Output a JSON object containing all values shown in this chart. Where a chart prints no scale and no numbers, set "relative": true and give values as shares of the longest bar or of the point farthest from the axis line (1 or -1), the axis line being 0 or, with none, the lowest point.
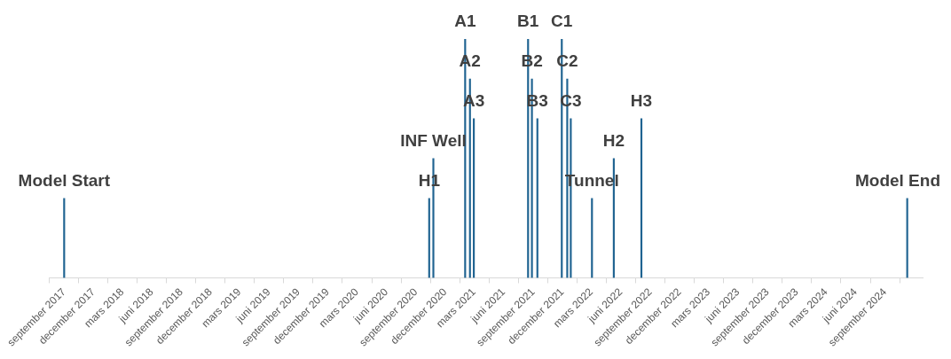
{
  "chart_data": {
    "type": "bar",
    "relative": true,
    "color": "#1f6391",
    "x": [
      "2017-09-01",
      "2020-10-12",
      "2020-10-25",
      "2021-02-01",
      "2021-02-16",
      "2021-02-28",
      "2021-08-16",
      "2021-08-28",
      "2021-09-14",
      "2021-11-29",
      "2021-12-16",
      "2021-12-27",
      "2022-03-03",
      "2022-05-10",
      "2022-08-04",
      "2024-11-09"
    ],
    "values": [
      0.333,
      0.333,
      0.5,
      1,
      0.833,
      0.667,
      1,
      0.833,
      0.667,
      1,
      0.833,
      0.667,
      0.333,
      0.5,
      0.667,
      0.333
    ],
    "xlim": [
      "2017-09-01",
      "2024-11-10"
    ],
    "xticks": [
      {
        "value": "2017-09-01",
        "label": "september 2017"
      },
      {
        "value": "2017-12-01",
        "label": "december 2017"
      },
      {
        "value": "2018-03-01",
        "label": "mars 2018"
      },
      {
        "value": "2018-06-01",
        "label": "juni 2018"
      },
      {
        "value": "2018-09-01",
        "label": "september 2018"
      },
      {
        "value": "2018-12-01",
        "label": "december 2018"
      },
      {
        "value": "2019-03-01",
        "label": "mars 2019"
      },
      {
        "value": "2019-06-01",
        "label": "juni 2019"
      },
      {
        "value": "2019-09-01",
        "label": "september 2019"
      },
      {
        "value": "2019-12-01",
        "label": "december 2019"
      },
      {
        "value": "2020-03-01",
        "label": "mars 2020"
      },
      {
        "value": "2020-06-01",
        "label": "juni 2020"
      },
      {
        "value": "2020-09-01",
        "label": "september 2020"
      },
      {
        "value": "2020-12-01",
        "label": "december 2020"
      },
      {
        "value": "2021-03-01",
        "label": "mars 2021"
      },
      {
        "value": "2021-06-01",
        "label": "juni 2021"
      },
      {
        "value": "2021-09-01",
        "label": "september 2021"
      },
      {
        "value": "2021-12-01",
        "label": "december 2021"
      },
      {
        "value": "2022-03-01",
        "label": "mars 2022"
      },
      {
        "value": "2022-06-01",
        "label": "juni 2022"
      },
      {
        "value": "2022-09-01",
        "label": "september 2022"
      },
      {
        "value": "2022-12-01",
        "label": "december 2022"
      },
      {
        "value": "2023-03-01",
        "label": "mars 2023"
      },
      {
        "value": "2023-06-01",
        "label": "juni 2023"
      },
      {
        "value": "2023-09-01",
        "label": "september 2023"
      },
      {
        "value": "2023-12-01",
        "label": "december 2023"
      },
      {
        "value": "2024-03-01",
        "label": "mars 2024"
      },
      {
        "value": "2024-06-01",
        "label": "juni 2024"
      },
      {
        "value": "2024-09-01",
        "label": "september 2024"
      }
    ],
    "annotations": [
      {
        "text": "Model Start",
        "x": "2017-09-01",
        "y": 0.333
      },
      {
        "text": "H1",
        "x": "2020-10-12",
        "y": 0.333
      },
      {
        "text": "INF Well",
        "x": "2020-10-25",
        "y": 0.5
      },
      {
        "text": "A1",
        "x": "2021-02-01",
        "y": 1
      },
      {
        "text": "A2",
        "x": "2021-02-16",
        "y": 0.833
      },
      {
        "text": "A3",
        "x": "2021-02-28",
        "y": 0.667
      },
      {
        "text": "B1",
        "x": "2021-08-16",
        "y": 1
      },
      {
        "text": "B2",
        "x": "2021-08-28",
        "y": 0.833
      },
      {
        "text": "B3",
        "x": "2021-09-14",
        "y": 0.667
      },
      {
        "text": "C1",
        "x": "2021-11-29",
        "y": 1
      },
      {
        "text": "C2",
        "x": "2021-12-16",
        "y": 0.833
      },
      {
        "text": "C3",
        "x": "2021-12-27",
        "y": 0.667
      },
      {
        "text": "Tunnel",
        "x": "2022-03-03",
        "y": 0.333
      },
      {
        "text": "H2",
        "x": "2022-05-10",
        "y": 0.5
      },
      {
        "text": "H3",
        "x": "2022-08-04",
        "y": 0.667
      },
      {
        "text": "Model End",
        "x": "2024-11-09",
        "y": 0.333
      }
    ]
  }
}
